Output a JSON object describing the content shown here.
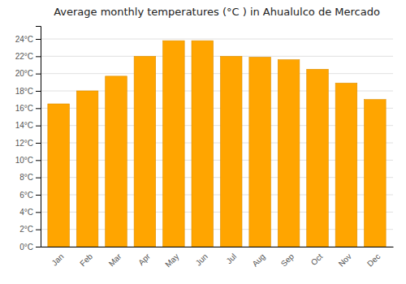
{
  "chart_data": {
    "type": "bar",
    "title": "Average monthly temperatures (°C ) in Ahualulco de Mercado",
    "categories": [
      "Jan",
      "Feb",
      "Mar",
      "Apr",
      "May",
      "Jun",
      "Jul",
      "Aug",
      "Sep",
      "Oct",
      "Nov",
      "Dec"
    ],
    "values": [
      16.5,
      18.0,
      19.7,
      22.0,
      23.8,
      23.8,
      22.0,
      21.9,
      21.6,
      20.5,
      18.9,
      17.0
    ],
    "color": "#FFA500",
    "ylim": [
      0,
      25.5
    ],
    "yticks": [
      {
        "value": 0,
        "label": "0°C"
      },
      {
        "value": 2,
        "label": "2°C"
      },
      {
        "value": 4,
        "label": "4°C"
      },
      {
        "value": 6,
        "label": "6°C"
      },
      {
        "value": 8,
        "label": "8°C"
      },
      {
        "value": 10,
        "label": "10°C"
      },
      {
        "value": 12,
        "label": "12°C"
      },
      {
        "value": 14,
        "label": "14°C"
      },
      {
        "value": 16,
        "label": "16°C"
      },
      {
        "value": 18,
        "label": "18°C"
      },
      {
        "value": 20,
        "label": "20°C"
      },
      {
        "value": 22,
        "label": "22°C"
      },
      {
        "value": 24,
        "label": "24°C"
      }
    ],
    "grid": true
  }
}
